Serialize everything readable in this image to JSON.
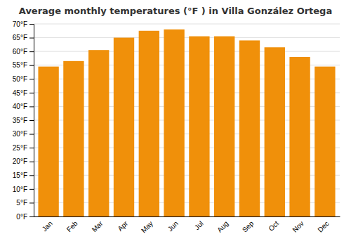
{
  "chart_data": {
    "type": "bar",
    "title": "Average monthly temperatures (°F ) in Villa González Ortega",
    "categories": [
      "Jan",
      "Feb",
      "Mar",
      "Apr",
      "May",
      "Jun",
      "Jul",
      "Aug",
      "Sep",
      "Oct",
      "Nov",
      "Dec"
    ],
    "values": [
      54.5,
      56.5,
      60.5,
      65.0,
      67.5,
      68.0,
      65.5,
      65.5,
      64.0,
      61.5,
      58.0,
      54.5
    ],
    "color": "#F0900A",
    "ylim": [
      0,
      70
    ],
    "yticks": [
      {
        "value": 0,
        "label": "0°F"
      },
      {
        "value": 5,
        "label": "5°F"
      },
      {
        "value": 10,
        "label": "10°F"
      },
      {
        "value": 15,
        "label": "15°F"
      },
      {
        "value": 20,
        "label": "20°F"
      },
      {
        "value": 25,
        "label": "25°F"
      },
      {
        "value": 30,
        "label": "30°F"
      },
      {
        "value": 35,
        "label": "35°F"
      },
      {
        "value": 40,
        "label": "40°F"
      },
      {
        "value": 45,
        "label": "45°F"
      },
      {
        "value": 50,
        "label": "50°F"
      },
      {
        "value": 55,
        "label": "55°F"
      },
      {
        "value": 60,
        "label": "60°F"
      },
      {
        "value": 65,
        "label": "65°F"
      },
      {
        "value": 70,
        "label": "70°F"
      }
    ],
    "grid": true
  }
}
